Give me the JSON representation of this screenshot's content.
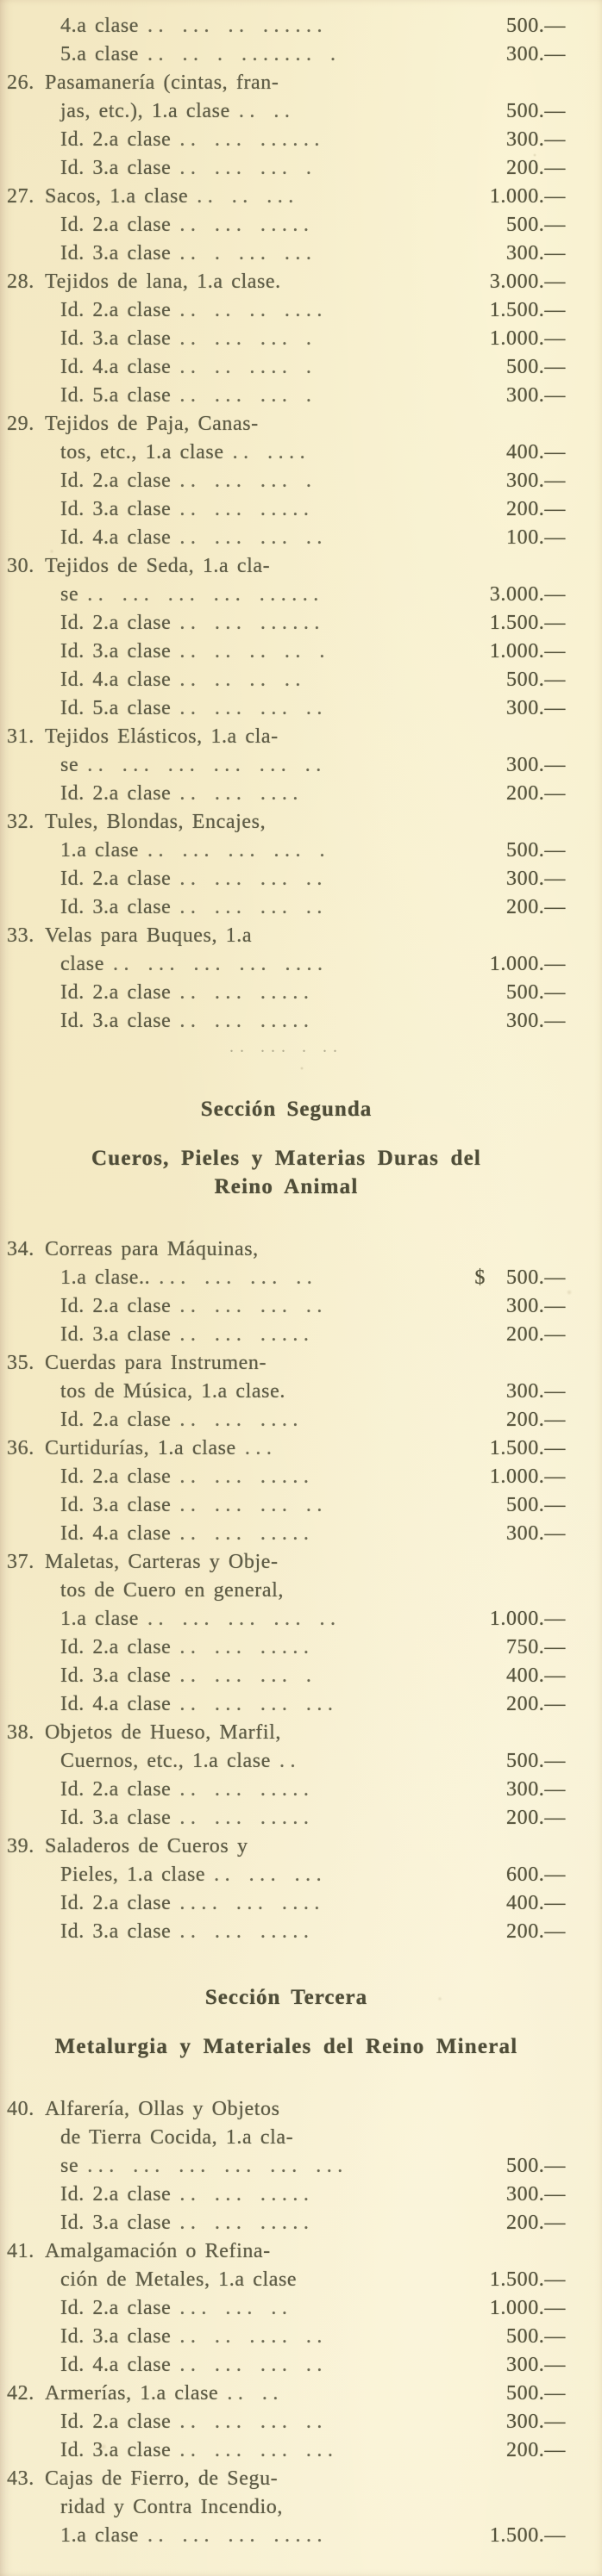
{
  "colors": {
    "paper": "#f5ecca",
    "ink": "#5e5c46",
    "ink_strong": "#57553e",
    "ink_heading": "#4f4d38"
  },
  "sections": [
    {
      "heading": "",
      "subheading_lines": [],
      "separator_dots": ".. ... .   ..",
      "rows": [
        {
          "num": "",
          "indent": 1,
          "text": "4.a clase",
          "dots": ".. ... .. ......",
          "currency": "",
          "price": "500.—"
        },
        {
          "num": "",
          "indent": 1,
          "text": "5.a clase",
          "dots": ".. .. . ....... .",
          "currency": "",
          "price": "300.—"
        },
        {
          "num": "26.",
          "indent": 0,
          "text": "Pasamanería (cintas, fran-",
          "dots": "",
          "currency": "",
          "price": ""
        },
        {
          "num": "",
          "indent": 1,
          "text": "jas, etc.), 1.a clase",
          "dots": ".. ..",
          "currency": "",
          "price": "500.—"
        },
        {
          "num": "",
          "indent": 1,
          "text": "Id. 2.a clase",
          "dots": ".. ... ......",
          "currency": "",
          "price": "300.—"
        },
        {
          "num": "",
          "indent": 1,
          "text": "Id. 3.a clase",
          "dots": ".. ... ... .",
          "currency": "",
          "price": "200.—"
        },
        {
          "num": "27.",
          "indent": 0,
          "text": "Sacos, 1.a clase",
          "dots": ".. .. ...",
          "currency": "",
          "price": "1.000.—"
        },
        {
          "num": "",
          "indent": 1,
          "text": "Id. 2.a clase",
          "dots": ".. ... .....",
          "currency": "",
          "price": "500.—"
        },
        {
          "num": "",
          "indent": 1,
          "text": "Id. 3.a clase",
          "dots": ".. . ... ...",
          "currency": "",
          "price": "300.—"
        },
        {
          "num": "28.",
          "indent": 0,
          "text": "Tejidos de lana, 1.a clase.",
          "dots": "",
          "currency": "",
          "price": "3.000.—"
        },
        {
          "num": "",
          "indent": 1,
          "text": "Id. 2.a clase",
          "dots": ".. .. .. ....",
          "currency": "",
          "price": "1.500.—"
        },
        {
          "num": "",
          "indent": 1,
          "text": "Id. 3.a clase",
          "dots": ".. ... ... .",
          "currency": "",
          "price": "1.000.—"
        },
        {
          "num": "",
          "indent": 1,
          "text": "Id. 4.a clase",
          "dots": ".. .. .... .",
          "currency": "",
          "price": "500.—"
        },
        {
          "num": "",
          "indent": 1,
          "text": "Id. 5.a clase",
          "dots": ".. ... ... .",
          "currency": "",
          "price": "300.—"
        },
        {
          "num": "29.",
          "indent": 0,
          "text": "Tejidos de Paja, Canas-",
          "dots": "",
          "currency": "",
          "price": ""
        },
        {
          "num": "",
          "indent": 1,
          "text": "tos, etc., 1.a clase",
          "dots": ".. ....",
          "currency": "",
          "price": "400.—"
        },
        {
          "num": "",
          "indent": 1,
          "text": "Id. 2.a clase",
          "dots": ".. ... ... .",
          "currency": "",
          "price": "300.—"
        },
        {
          "num": "",
          "indent": 1,
          "text": "Id. 3.a clase",
          "dots": ".. ... .....",
          "currency": "",
          "price": "200.—"
        },
        {
          "num": "",
          "indent": 1,
          "text": "Id. 4.a clase",
          "dots": ".. ... ... ..",
          "currency": "",
          "price": "100.—"
        },
        {
          "num": "30.",
          "indent": 0,
          "text": "Tejidos de Seda, 1.a cla-",
          "dots": "",
          "currency": "",
          "price": ""
        },
        {
          "num": "",
          "indent": 1,
          "text": "se",
          "dots": ".. ... ... ... ......",
          "currency": "",
          "price": "3.000.—"
        },
        {
          "num": "",
          "indent": 1,
          "text": "Id. 2.a clase",
          "dots": ".. ... ......",
          "currency": "",
          "price": "1.500.—"
        },
        {
          "num": "",
          "indent": 1,
          "text": "Id. 3.a clase",
          "dots": ".. .. .. .. .",
          "currency": "",
          "price": "1.000.—"
        },
        {
          "num": "",
          "indent": 1,
          "text": "Id. 4.a clase",
          "dots": ".. .. .. ..",
          "currency": "",
          "price": "500.—"
        },
        {
          "num": "",
          "indent": 1,
          "text": "Id. 5.a clase",
          "dots": ".. ... ... ..",
          "currency": "",
          "price": "300.—"
        },
        {
          "num": "31.",
          "indent": 0,
          "text": "Tejidos Elásticos, 1.a cla-",
          "dots": "",
          "currency": "",
          "price": ""
        },
        {
          "num": "",
          "indent": 1,
          "text": "se",
          "dots": ".. ... ... ... ... ..",
          "currency": "",
          "price": "300.—"
        },
        {
          "num": "",
          "indent": 1,
          "text": "Id. 2.a clase",
          "dots": ".. ... ....",
          "currency": "",
          "price": "200.—"
        },
        {
          "num": "32.",
          "indent": 0,
          "text": "Tules, Blondas, Encajes,",
          "dots": "",
          "currency": "",
          "price": ""
        },
        {
          "num": "",
          "indent": 1,
          "text": "1.a clase",
          "dots": ".. ... ... ... .",
          "currency": "",
          "price": "500.—"
        },
        {
          "num": "",
          "indent": 1,
          "text": "Id. 2.a clase",
          "dots": ".. ... ... ..",
          "currency": "",
          "price": "300.—"
        },
        {
          "num": "",
          "indent": 1,
          "text": "Id. 3.a clase",
          "dots": ".. ... ... ..",
          "currency": "",
          "price": "200.—"
        },
        {
          "num": "33.",
          "indent": 0,
          "text": "Velas para Buques, 1.a",
          "dots": "",
          "currency": "",
          "price": ""
        },
        {
          "num": "",
          "indent": 1,
          "text": "clase",
          "dots": ".. ... ... ... ....",
          "currency": "",
          "price": "1.000.—"
        },
        {
          "num": "",
          "indent": 1,
          "text": "Id. 2.a clase",
          "dots": ".. ... .....",
          "currency": "",
          "price": "500.—"
        },
        {
          "num": "",
          "indent": 1,
          "text": "Id. 3.a clase",
          "dots": ".. ... .....",
          "currency": "",
          "price": "300.—"
        }
      ]
    },
    {
      "heading": "Sección Segunda",
      "subheading_lines": [
        "Cueros, Pieles y Materias Duras del",
        "Reino Animal"
      ],
      "separator_dots": "",
      "rows": [
        {
          "num": "34.",
          "indent": 0,
          "text": "Correas para Máquinas,",
          "dots": "",
          "currency": "",
          "price": ""
        },
        {
          "num": "",
          "indent": 1,
          "text": "1.a clase..",
          "dots": "... ... ... ..",
          "currency": "$",
          "price": "500.—"
        },
        {
          "num": "",
          "indent": 1,
          "text": "Id. 2.a clase",
          "dots": ".. ... ... ..",
          "currency": "",
          "price": "300.—"
        },
        {
          "num": "",
          "indent": 1,
          "text": "Id. 3.a clase",
          "dots": ".. ... .....",
          "currency": "",
          "price": "200.—"
        },
        {
          "num": "35.",
          "indent": 0,
          "text": "Cuerdas para Instrumen-",
          "dots": "",
          "currency": "",
          "price": ""
        },
        {
          "num": "",
          "indent": 1,
          "text": "tos de Música, 1.a clase.",
          "dots": "",
          "currency": "",
          "price": "300.—"
        },
        {
          "num": "",
          "indent": 1,
          "text": "Id. 2.a clase",
          "dots": ".. ... ....",
          "currency": "",
          "price": "200.—"
        },
        {
          "num": "36.",
          "indent": 0,
          "text": "Curtidurías, 1.a clase",
          "dots": "...",
          "currency": "",
          "price": "1.500.—"
        },
        {
          "num": "",
          "indent": 1,
          "text": "Id. 2.a clase",
          "dots": ".. ... .....",
          "currency": "",
          "price": "1.000.—"
        },
        {
          "num": "",
          "indent": 1,
          "text": "Id. 3.a clase",
          "dots": ".. ... ... ..",
          "currency": "",
          "price": "500.—"
        },
        {
          "num": "",
          "indent": 1,
          "text": "Id. 4.a clase",
          "dots": ".. ... .....",
          "currency": "",
          "price": "300.—"
        },
        {
          "num": "37.",
          "indent": 0,
          "text": "Maletas, Carteras y Obje-",
          "dots": "",
          "currency": "",
          "price": ""
        },
        {
          "num": "",
          "indent": 1,
          "text": "tos de Cuero en general,",
          "dots": "",
          "currency": "",
          "price": ""
        },
        {
          "num": "",
          "indent": 1,
          "text": "1.a clase",
          "dots": ".. ... ... ... ..",
          "currency": "",
          "price": "1.000.—"
        },
        {
          "num": "",
          "indent": 1,
          "text": "Id. 2.a clase",
          "dots": ".. ... .....",
          "currency": "",
          "price": "750.—"
        },
        {
          "num": "",
          "indent": 1,
          "text": "Id. 3.a clase",
          "dots": ".. ... ... .",
          "currency": "",
          "price": "400.—"
        },
        {
          "num": "",
          "indent": 1,
          "text": "Id. 4.a clase",
          "dots": ".. ... ... ...",
          "currency": "",
          "price": "200.—"
        },
        {
          "num": "38.",
          "indent": 0,
          "text": "Objetos de Hueso, Marfil,",
          "dots": "",
          "currency": "",
          "price": ""
        },
        {
          "num": "",
          "indent": 1,
          "text": "Cuernos, etc., 1.a clase",
          "dots": "..",
          "currency": "",
          "price": "500.—"
        },
        {
          "num": "",
          "indent": 1,
          "text": "Id. 2.a clase",
          "dots": ".. ... .....",
          "currency": "",
          "price": "300.—"
        },
        {
          "num": "",
          "indent": 1,
          "text": "Id. 3.a clase",
          "dots": ".. ... .....",
          "currency": "",
          "price": "200.—"
        },
        {
          "num": "39.",
          "indent": 0,
          "text": "Saladeros de Cueros y",
          "dots": "",
          "currency": "",
          "price": ""
        },
        {
          "num": "",
          "indent": 1,
          "text": "Pieles, 1.a clase",
          "dots": ".. ... ...",
          "currency": "",
          "price": "600.—"
        },
        {
          "num": "",
          "indent": 1,
          "text": "Id. 2.a clase",
          "dots": ".... ... ....",
          "currency": "",
          "price": "400.—"
        },
        {
          "num": "",
          "indent": 1,
          "text": "Id. 3.a clase",
          "dots": ".. ... .....",
          "currency": "",
          "price": "200.—"
        }
      ]
    },
    {
      "heading": "Sección Tercera",
      "subheading_lines": [
        "Metalurgia y Materiales del Reino Mineral"
      ],
      "separator_dots": "",
      "rows": [
        {
          "num": "40.",
          "indent": 0,
          "text": "Alfarería, Ollas y Objetos",
          "dots": "",
          "currency": "",
          "price": ""
        },
        {
          "num": "",
          "indent": 1,
          "text": "de Tierra Cocida, 1.a cla-",
          "dots": "",
          "currency": "",
          "price": ""
        },
        {
          "num": "",
          "indent": 1,
          "text": "se",
          "dots": "... ... ... ... ... ...",
          "currency": "",
          "price": "500.—"
        },
        {
          "num": "",
          "indent": 1,
          "text": "Id. 2.a clase",
          "dots": ".. ... .....",
          "currency": "",
          "price": "300.—"
        },
        {
          "num": "",
          "indent": 1,
          "text": "Id. 3.a clase",
          "dots": ".. ... .....",
          "currency": "",
          "price": "200.—"
        },
        {
          "num": "41.",
          "indent": 0,
          "text": "Amalgamación o Refina-",
          "dots": "",
          "currency": "",
          "price": ""
        },
        {
          "num": "",
          "indent": 1,
          "text": "ción de Metales, 1.a clase",
          "dots": "",
          "currency": "",
          "price": "1.500.—"
        },
        {
          "num": "",
          "indent": 1,
          "text": "Id. 2.a clase",
          "dots": "... ... ..",
          "currency": "",
          "price": "1.000.—"
        },
        {
          "num": "",
          "indent": 1,
          "text": "Id. 3.a clase",
          "dots": ".. .. .... ..",
          "currency": "",
          "price": "500.—"
        },
        {
          "num": "",
          "indent": 1,
          "text": "Id. 4.a clase",
          "dots": ".. ... ... ..",
          "currency": "",
          "price": "300.—"
        },
        {
          "num": "42.",
          "indent": 0,
          "text": "Armerías, 1.a clase",
          "dots": ".. ..",
          "currency": "",
          "price": "500.—"
        },
        {
          "num": "",
          "indent": 1,
          "text": "Id. 2.a clase",
          "dots": ".. ... ... ..",
          "currency": "",
          "price": "300.—"
        },
        {
          "num": "",
          "indent": 1,
          "text": "Id. 3.a clase",
          "dots": ".. ... ... ...",
          "currency": "",
          "price": "200.—"
        },
        {
          "num": "43.",
          "indent": 0,
          "text": "Cajas de Fierro, de Segu-",
          "dots": "",
          "currency": "",
          "price": ""
        },
        {
          "num": "",
          "indent": 1,
          "text": "ridad y Contra Incendio,",
          "dots": "",
          "currency": "",
          "price": ""
        },
        {
          "num": "",
          "indent": 1,
          "text": "1.a clase",
          "dots": ".. ... ... .....",
          "currency": "",
          "price": "1.500.—"
        }
      ]
    }
  ]
}
